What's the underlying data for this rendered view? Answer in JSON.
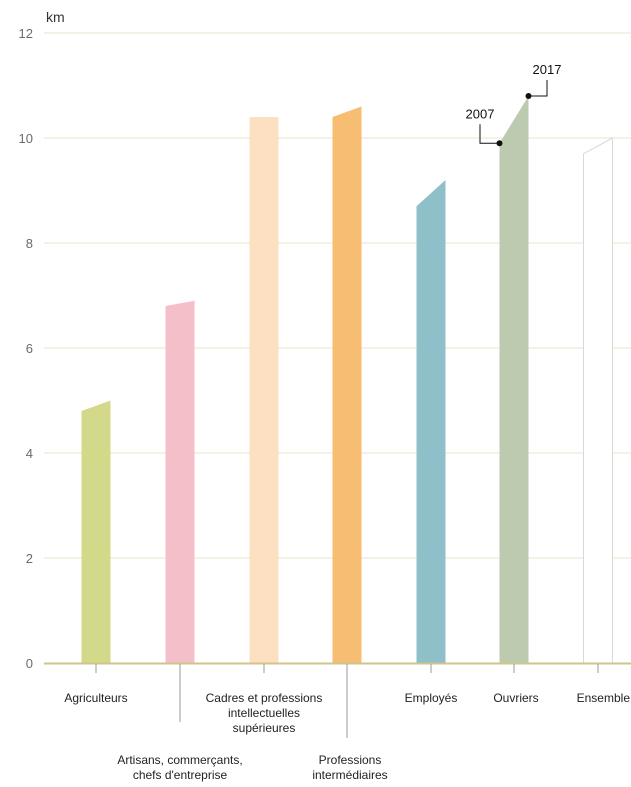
{
  "chart_data": {
    "type": "bar",
    "ylabel": "km",
    "ylim": [
      0,
      12
    ],
    "yticks": [
      "0",
      "2",
      "4",
      "6",
      "8",
      "10",
      "12"
    ],
    "grid": true,
    "categories": [
      {
        "lines": [
          "Agriculteurs"
        ]
      },
      {
        "lines": [
          "Artisans, commerçants,",
          "chefs d'entreprise"
        ]
      },
      {
        "lines": [
          "Cadres et professions",
          "intellectuelles",
          "supérieures"
        ]
      },
      {
        "lines": [
          "Professions",
          "intermédiaires"
        ]
      },
      {
        "lines": [
          "Employés"
        ]
      },
      {
        "lines": [
          "Ouvriers"
        ]
      },
      {
        "lines": [
          "Ensemble"
        ]
      }
    ],
    "series": [
      {
        "name": "2007",
        "values": [
          4.8,
          6.8,
          10.4,
          10.4,
          8.7,
          9.9,
          9.7
        ]
      },
      {
        "name": "2017",
        "values": [
          5.0,
          6.9,
          10.4,
          10.6,
          9.2,
          10.8,
          10.0
        ]
      }
    ],
    "annotations": [
      {
        "text": "2007",
        "category_index": 5,
        "series": "2007"
      },
      {
        "text": "2017",
        "category_index": 5,
        "series": "2017"
      }
    ],
    "colors": [
      "#d4d98a",
      "#f5bfc9",
      "#fde0c2",
      "#f7bd72",
      "#8fbfc8",
      "#bccbb0",
      "#ffffff"
    ],
    "grid_color": "#e9e6c8",
    "axis_color": "#cfc48a"
  }
}
